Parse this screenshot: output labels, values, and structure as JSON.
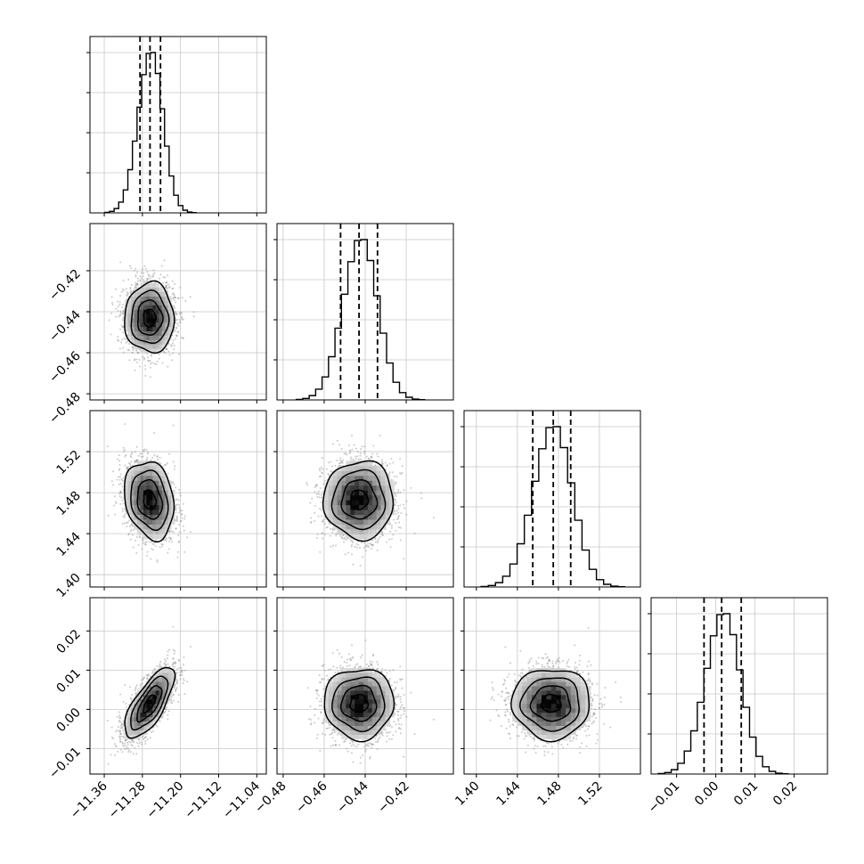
{
  "chart_data": {
    "type": "corner",
    "grid": true,
    "parameters": [
      {
        "id": "p0",
        "range": [
          -11.39,
          -11.02
        ],
        "ticks": [
          -11.36,
          -11.28,
          -11.2,
          -11.12,
          -11.04
        ],
        "tick_labels": [
          "−11.36",
          "−11.28",
          "−11.20",
          "−11.12",
          "−11.04"
        ],
        "mean": -11.265,
        "sd": 0.026,
        "quantiles": [
          -11.285,
          -11.264,
          -11.242
        ]
      },
      {
        "id": "p1",
        "range": [
          -0.483,
          -0.397
        ],
        "ticks": [
          -0.48,
          -0.46,
          -0.44,
          -0.42
        ],
        "tick_labels": [
          "−0.48",
          "−0.46",
          "−0.44",
          "−0.42"
        ],
        "mean": -0.443,
        "sd": 0.0085,
        "quantiles": [
          -0.452,
          -0.443,
          -0.434
        ]
      },
      {
        "id": "p2",
        "range": [
          1.388,
          1.56
        ],
        "ticks": [
          1.4,
          1.44,
          1.48,
          1.52
        ],
        "tick_labels": [
          "1.40",
          "1.44",
          "1.48",
          "1.52"
        ],
        "mean": 1.473,
        "sd": 0.019,
        "quantiles": [
          1.455,
          1.475,
          1.492
        ]
      },
      {
        "id": "p3",
        "range": [
          -0.0165,
          0.0285
        ],
        "ticks": [
          -0.01,
          0.0,
          0.01,
          0.02
        ],
        "tick_labels": [
          "−0.01",
          "0.00",
          "0.01",
          "0.02"
        ],
        "mean": 0.0015,
        "sd": 0.0045,
        "quantiles": [
          -0.003,
          0.0015,
          0.0065
        ]
      }
    ],
    "correlations": {
      "p1-p0": 0.0,
      "p2-p0": -0.2,
      "p2-p1": 0.0,
      "p3-p0": 0.72,
      "p3-p1": 0.0,
      "p3-p2": 0.0
    },
    "histogram_bins": 20,
    "contour_levels_sigma": [
      0.5,
      1.0,
      1.5,
      2.0
    ]
  }
}
